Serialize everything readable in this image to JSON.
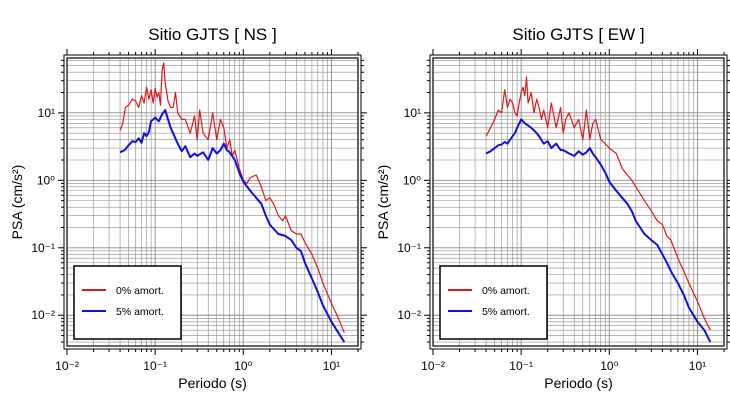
{
  "colors": {
    "undamped": "#e01818",
    "damped": "#1010e0",
    "grid": "#8c8c8c",
    "frame": "#000000"
  },
  "chart_data": [
    {
      "type": "line",
      "title": "Sitio GJTS [ NS ]",
      "xlabel": "Periodo (s)",
      "ylabel": "PSA (cm/s²)",
      "xscale": "log",
      "yscale": "log",
      "xlim": [
        0.01,
        20
      ],
      "ylim": [
        0.0035,
        65
      ],
      "xticks": [
        "10⁻²",
        "10⁻¹",
        "10⁰",
        "10¹"
      ],
      "yticks": [
        "10⁻²",
        "10⁻¹",
        "10⁰",
        "10¹"
      ],
      "grid": true,
      "legend_position": "bottom-left",
      "series": [
        {
          "name": "0% amort.",
          "color": "#e01818",
          "x": [
            0.04,
            0.043,
            0.046,
            0.05,
            0.055,
            0.06,
            0.065,
            0.07,
            0.075,
            0.08,
            0.085,
            0.09,
            0.095,
            0.1,
            0.105,
            0.11,
            0.115,
            0.12,
            0.125,
            0.13,
            0.14,
            0.15,
            0.16,
            0.17,
            0.18,
            0.2,
            0.22,
            0.25,
            0.28,
            0.3,
            0.32,
            0.35,
            0.4,
            0.45,
            0.5,
            0.55,
            0.6,
            0.65,
            0.7,
            0.75,
            0.8,
            0.9,
            1.0,
            1.1,
            1.2,
            1.4,
            1.6,
            1.8,
            2.0,
            2.2,
            2.5,
            2.8,
            3.0,
            3.5,
            4.0,
            4.5,
            5.0,
            6.0,
            7.0,
            8.0,
            10,
            12,
            14
          ],
          "y": [
            5.5,
            7,
            12,
            13,
            16,
            15,
            12,
            18,
            14,
            24,
            16,
            22,
            14,
            23,
            17,
            20,
            13,
            42,
            55,
            28,
            15,
            12,
            12,
            20,
            10,
            8,
            8,
            5,
            9,
            4,
            11,
            5,
            4,
            10,
            4,
            8,
            6,
            3,
            4,
            2.3,
            2.8,
            1.5,
            1.0,
            0.9,
            1.1,
            1.2,
            0.8,
            0.5,
            0.55,
            0.45,
            0.3,
            0.25,
            0.3,
            0.18,
            0.16,
            0.16,
            0.12,
            0.08,
            0.05,
            0.03,
            0.015,
            0.009,
            0.0055
          ]
        },
        {
          "name": "5% amort.",
          "color": "#1010e0",
          "x": [
            0.04,
            0.045,
            0.05,
            0.055,
            0.06,
            0.065,
            0.07,
            0.075,
            0.08,
            0.085,
            0.09,
            0.1,
            0.11,
            0.12,
            0.13,
            0.14,
            0.15,
            0.16,
            0.18,
            0.2,
            0.22,
            0.25,
            0.28,
            0.3,
            0.35,
            0.4,
            0.45,
            0.5,
            0.55,
            0.6,
            0.65,
            0.7,
            0.8,
            0.9,
            1.0,
            1.2,
            1.4,
            1.6,
            1.8,
            2.0,
            2.5,
            3.0,
            3.5,
            4.0,
            4.5,
            5.0,
            6.0,
            7.0,
            8.0,
            10,
            12,
            14
          ],
          "y": [
            2.6,
            2.8,
            3.3,
            3.8,
            3.7,
            4.2,
            3.6,
            5,
            4.5,
            5.2,
            7.5,
            8.5,
            7.5,
            9.5,
            11,
            8,
            6,
            5,
            3.5,
            2.7,
            3.2,
            2.2,
            2.5,
            2.3,
            2.6,
            2.0,
            3.0,
            2.5,
            2.8,
            3.5,
            2.8,
            2.6,
            2.0,
            1.3,
            0.95,
            0.7,
            0.55,
            0.45,
            0.3,
            0.22,
            0.16,
            0.15,
            0.13,
            0.1,
            0.09,
            0.06,
            0.035,
            0.022,
            0.014,
            0.008,
            0.0055,
            0.004
          ]
        }
      ]
    },
    {
      "type": "line",
      "title": "Sitio GJTS [ EW ]",
      "xlabel": "Periodo (s)",
      "ylabel": "PSA (cm/s²)",
      "xscale": "log",
      "yscale": "log",
      "xlim": [
        0.01,
        20
      ],
      "ylim": [
        0.0035,
        65
      ],
      "xticks": [
        "10⁻²",
        "10⁻¹",
        "10⁰",
        "10¹"
      ],
      "yticks": [
        "10⁻²",
        "10⁻¹",
        "10⁰",
        "10¹"
      ],
      "grid": true,
      "legend_position": "bottom-left",
      "series": [
        {
          "name": "0% amort.",
          "color": "#e01818",
          "x": [
            0.04,
            0.045,
            0.05,
            0.055,
            0.06,
            0.065,
            0.07,
            0.075,
            0.08,
            0.085,
            0.09,
            0.095,
            0.1,
            0.105,
            0.11,
            0.115,
            0.12,
            0.13,
            0.14,
            0.15,
            0.16,
            0.17,
            0.18,
            0.2,
            0.22,
            0.25,
            0.28,
            0.3,
            0.32,
            0.35,
            0.4,
            0.45,
            0.5,
            0.55,
            0.6,
            0.65,
            0.7,
            0.8,
            0.9,
            1.0,
            1.2,
            1.4,
            1.6,
            1.8,
            2.0,
            2.5,
            3.0,
            3.5,
            4.0,
            4.5,
            5.0,
            6.0,
            7.0,
            8.0,
            10,
            12,
            14
          ],
          "y": [
            4.5,
            6,
            8,
            11,
            10,
            22,
            12,
            16,
            14,
            10,
            9,
            14,
            20,
            24,
            18,
            34,
            14,
            20,
            10,
            16,
            12,
            8,
            11,
            6,
            14,
            6,
            12,
            5,
            8,
            10,
            6,
            8,
            4,
            11,
            4,
            7,
            8,
            4,
            3.5,
            3,
            2.5,
            1.5,
            1.2,
            1.0,
            0.8,
            0.5,
            0.35,
            0.25,
            0.22,
            0.15,
            0.13,
            0.07,
            0.045,
            0.03,
            0.016,
            0.009,
            0.006
          ]
        },
        {
          "name": "5% amort.",
          "color": "#1010e0",
          "x": [
            0.04,
            0.045,
            0.05,
            0.055,
            0.06,
            0.065,
            0.07,
            0.075,
            0.08,
            0.085,
            0.09,
            0.1,
            0.11,
            0.12,
            0.13,
            0.14,
            0.15,
            0.16,
            0.18,
            0.2,
            0.22,
            0.25,
            0.28,
            0.3,
            0.35,
            0.4,
            0.45,
            0.5,
            0.55,
            0.6,
            0.65,
            0.7,
            0.8,
            0.9,
            1.0,
            1.2,
            1.4,
            1.6,
            1.8,
            2.0,
            2.5,
            3.0,
            3.5,
            4.0,
            4.5,
            5.0,
            6.0,
            7.0,
            8.0,
            10,
            12,
            14
          ],
          "y": [
            2.5,
            2.7,
            3,
            3.3,
            3.4,
            3.7,
            3.5,
            4,
            4.5,
            5,
            6,
            8,
            7,
            6.5,
            6,
            5.5,
            5,
            4.5,
            3.5,
            3.8,
            3,
            3.5,
            2.8,
            2.8,
            2.5,
            2.3,
            2.7,
            2.4,
            2.6,
            3.0,
            2.5,
            2.2,
            1.7,
            1.3,
            0.95,
            0.7,
            0.55,
            0.45,
            0.35,
            0.25,
            0.16,
            0.13,
            0.11,
            0.08,
            0.06,
            0.045,
            0.03,
            0.02,
            0.013,
            0.008,
            0.006,
            0.004
          ]
        }
      ]
    }
  ]
}
